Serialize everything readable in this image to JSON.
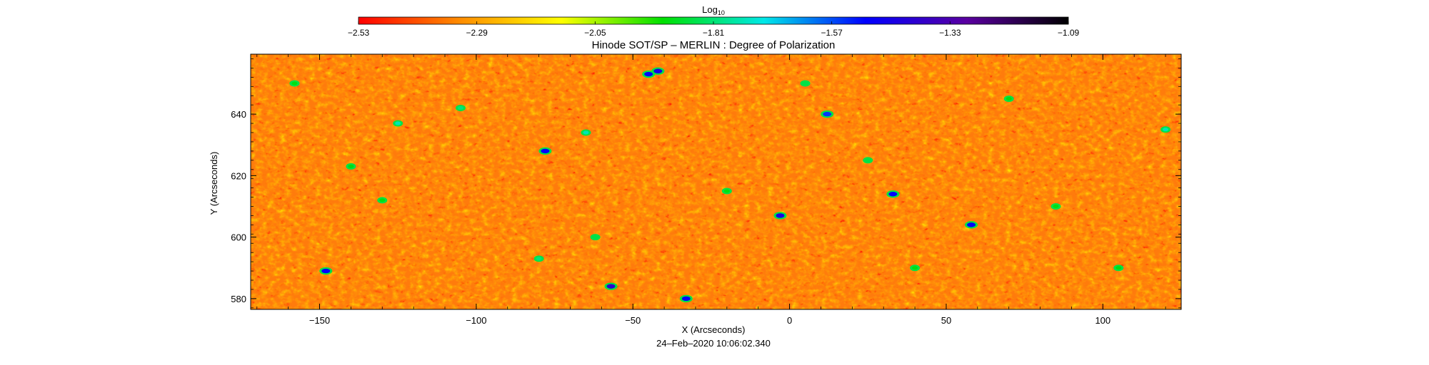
{
  "chart_data": {
    "type": "heatmap",
    "title": "Hinode SOT/SP – MERLIN : Degree of Polarization",
    "colorbar": {
      "label_main": "Log",
      "label_sub": "10",
      "ticks": [
        "−2.53",
        "−2.29",
        "−2.05",
        "−1.81",
        "−1.57",
        "−1.33",
        "−1.09"
      ],
      "range": [
        -2.53,
        -1.09
      ],
      "colormap": [
        "#ff0000",
        "#ff8c00",
        "#ffff00",
        "#00e000",
        "#00e8e8",
        "#0000ff",
        "#5a00a0",
        "#000000"
      ]
    },
    "x_axis": {
      "label": "X (Arcseconds)",
      "range": [
        -172,
        125
      ],
      "ticks": [
        {
          "value": -150,
          "label": "−150"
        },
        {
          "value": -100,
          "label": "−100"
        },
        {
          "value": -50,
          "label": "−50"
        },
        {
          "value": 0,
          "label": "0"
        },
        {
          "value": 50,
          "label": "50"
        },
        {
          "value": 100,
          "label": "100"
        }
      ]
    },
    "y_axis": {
      "label": "Y (Arcseconds)",
      "range": [
        576.5,
        659.5
      ],
      "ticks": [
        {
          "value": 580,
          "label": "580"
        },
        {
          "value": 600,
          "label": "600"
        },
        {
          "value": 620,
          "label": "620"
        },
        {
          "value": 640,
          "label": "640"
        }
      ]
    },
    "typical_value_range": [
      -2.53,
      -2.15
    ],
    "features": [
      {
        "x": -45,
        "y": 653,
        "value": -1.5
      },
      {
        "x": -42,
        "y": 654,
        "value": -1.45
      },
      {
        "x": 12,
        "y": 640,
        "value": -1.55
      },
      {
        "x": -125,
        "y": 637,
        "value": -1.75
      },
      {
        "x": -78,
        "y": 628,
        "value": -1.5
      },
      {
        "x": -65,
        "y": 634,
        "value": -1.75
      },
      {
        "x": 33,
        "y": 614,
        "value": -1.5
      },
      {
        "x": -3,
        "y": 607,
        "value": -1.45
      },
      {
        "x": 58,
        "y": 604,
        "value": -1.5
      },
      {
        "x": -148,
        "y": 589,
        "value": -1.5
      },
      {
        "x": -57,
        "y": 584,
        "value": -1.4
      },
      {
        "x": -33,
        "y": 580,
        "value": -1.5
      },
      {
        "x": 120,
        "y": 635,
        "value": -1.75
      },
      {
        "x": -105,
        "y": 642,
        "value": -1.8
      },
      {
        "x": -80,
        "y": 593,
        "value": -1.8
      },
      {
        "x": -62,
        "y": 600,
        "value": -1.85
      },
      {
        "x": 25,
        "y": 625,
        "value": -1.85
      },
      {
        "x": -140,
        "y": 623,
        "value": -1.9
      },
      {
        "x": 85,
        "y": 610,
        "value": -1.9
      },
      {
        "x": 105,
        "y": 590,
        "value": -1.9
      },
      {
        "x": 5,
        "y": 650,
        "value": -1.85
      },
      {
        "x": -130,
        "y": 612,
        "value": -1.9
      },
      {
        "x": -158,
        "y": 650,
        "value": -1.9
      },
      {
        "x": 70,
        "y": 645,
        "value": -1.9
      },
      {
        "x": -20,
        "y": 615,
        "value": -1.9
      },
      {
        "x": 40,
        "y": 590,
        "value": -1.9
      }
    ],
    "date": "24–Feb–2020 10:06:02.340"
  }
}
